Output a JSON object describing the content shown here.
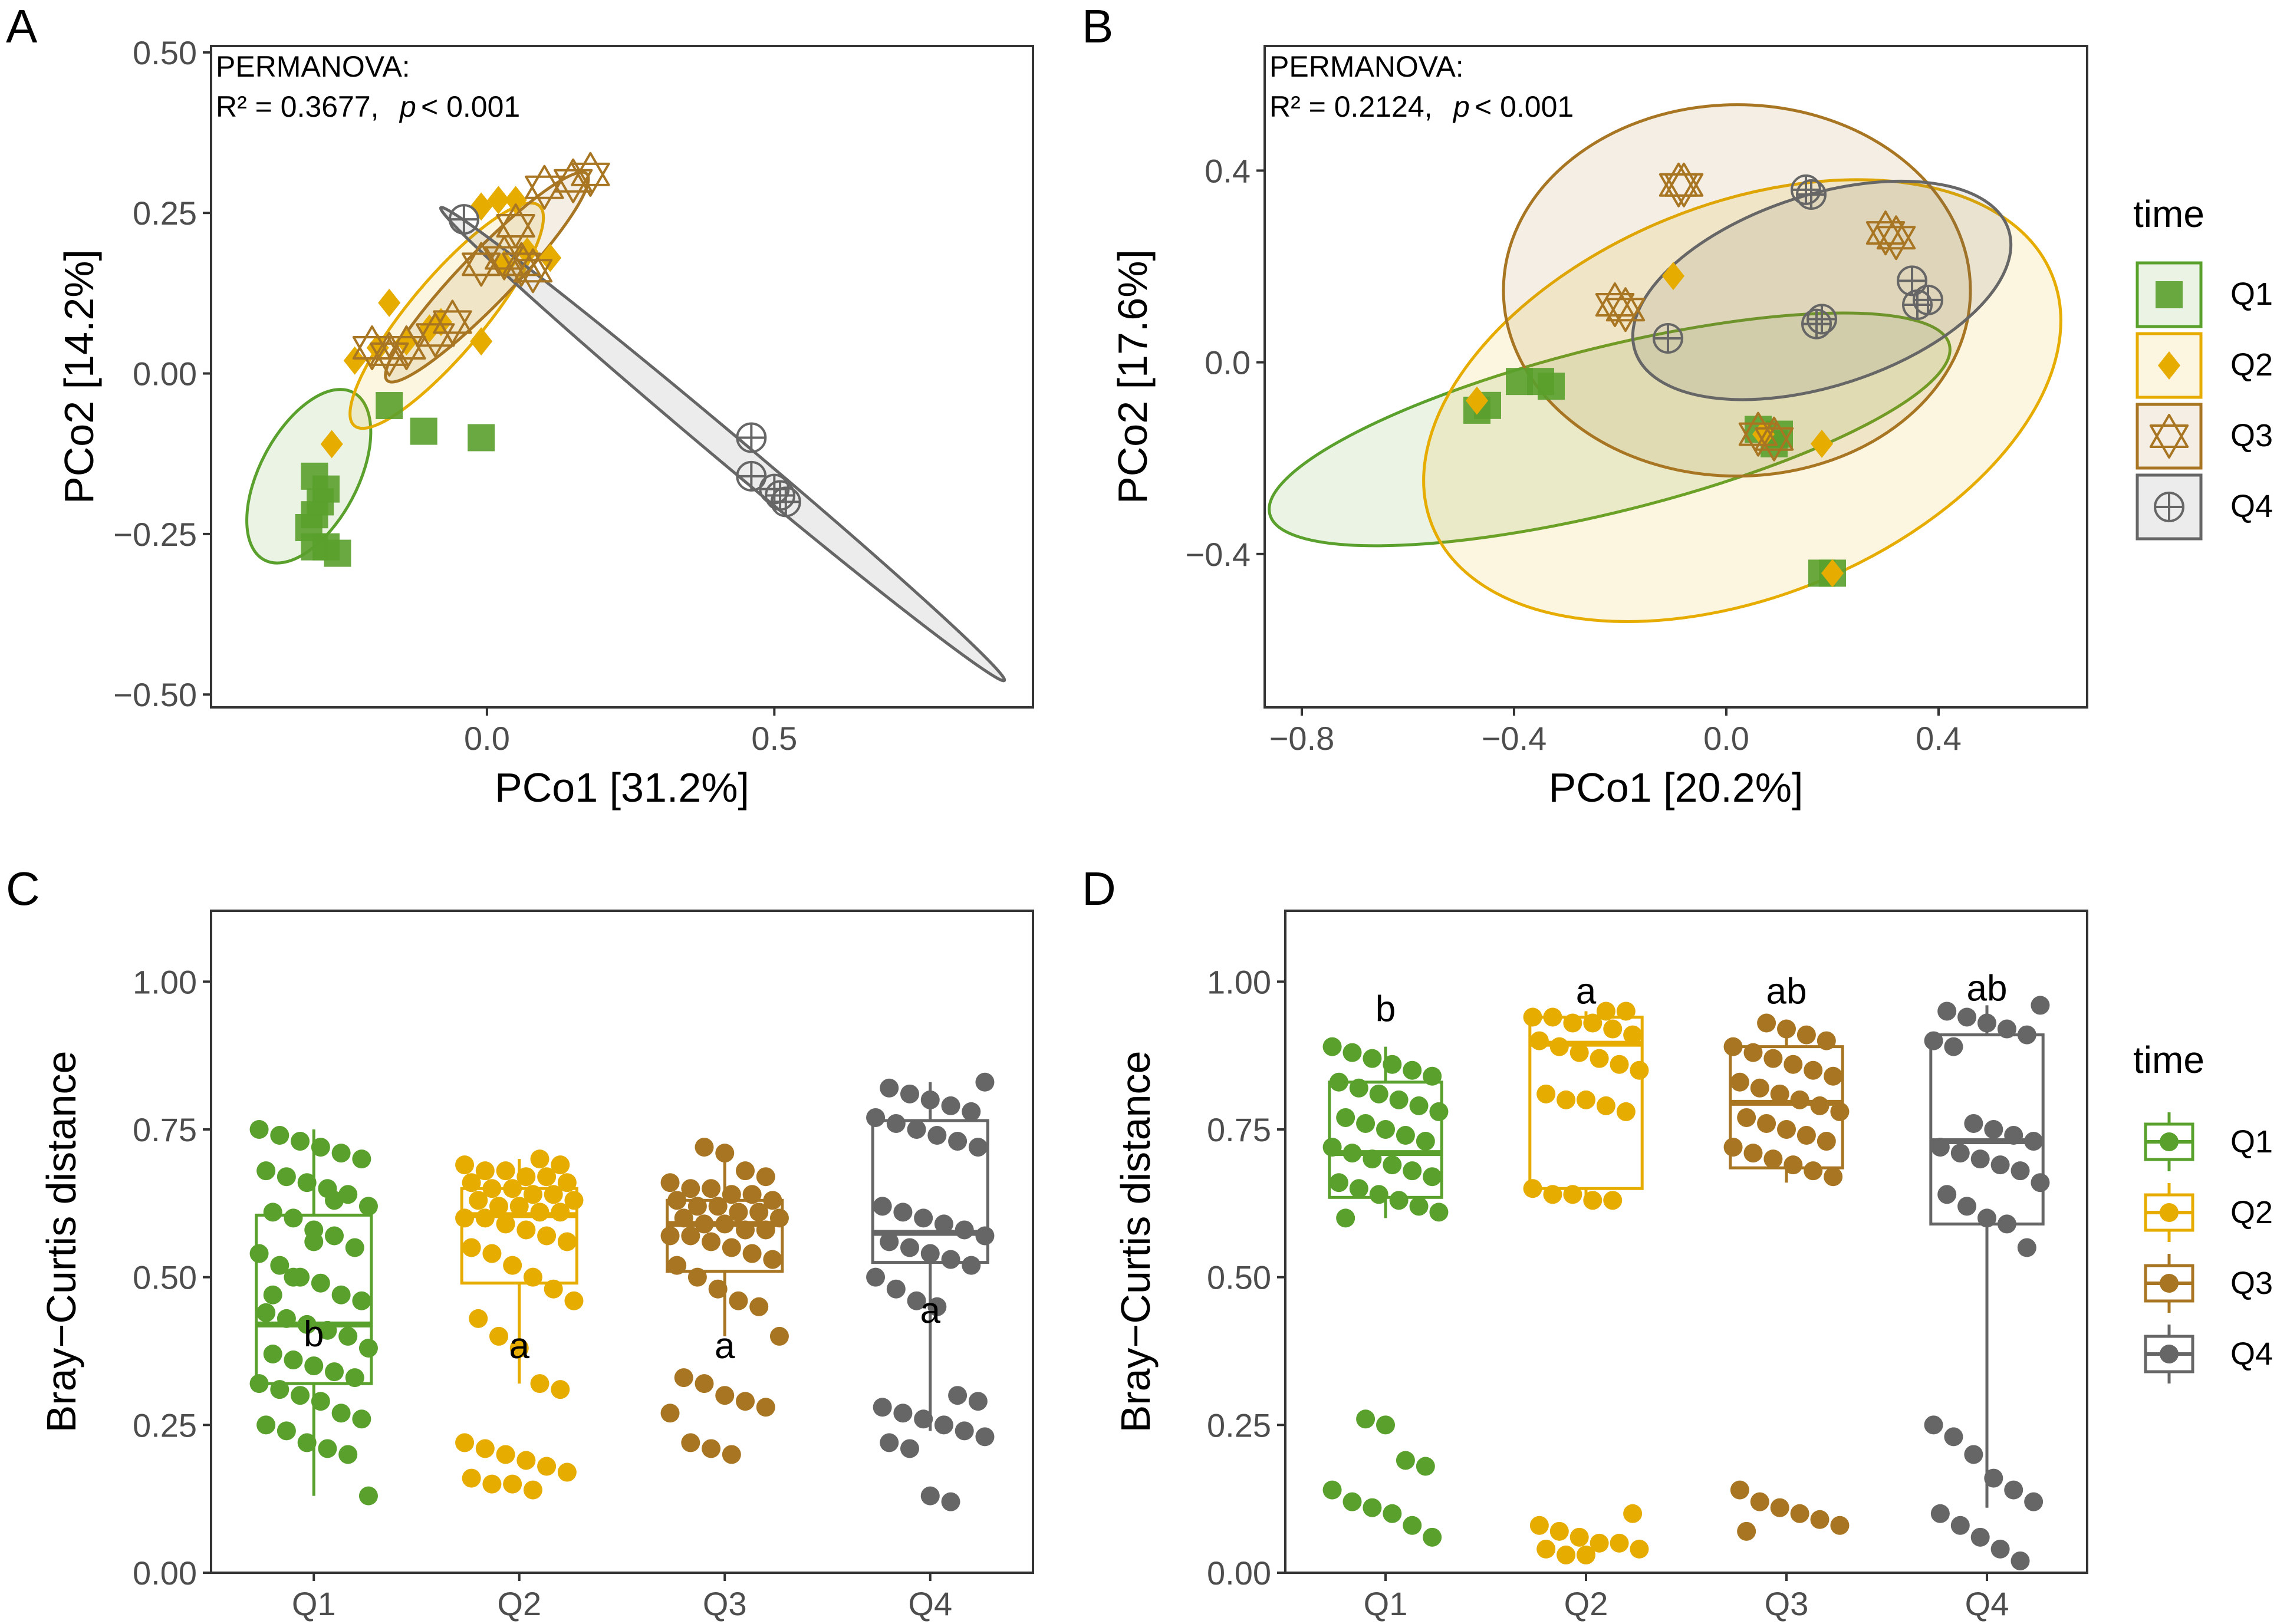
{
  "figure": {
    "colors": {
      "Q1": "#5aa02c",
      "Q2": "#e6ac00",
      "Q3": "#a87622",
      "Q4": "#666666"
    }
  },
  "legend": {
    "top": {
      "title": "time",
      "items": [
        "Q1",
        "Q2",
        "Q3",
        "Q4"
      ]
    },
    "bottom": {
      "title": "time",
      "items": [
        "Q1",
        "Q2",
        "Q3",
        "Q4"
      ]
    }
  },
  "chart_data": [
    {
      "panel": "A",
      "type": "scatter",
      "xlabel": "PCo1 [31.2%]",
      "ylabel": "PCo2 [14.2%]",
      "xlim": [
        -0.48,
        0.95
      ],
      "ylim": [
        -0.52,
        0.51
      ],
      "xticks": [
        0.0,
        0.5
      ],
      "xtick_labels": [
        "0.0",
        "0.5"
      ],
      "yticks": [
        -0.5,
        -0.25,
        0.0,
        0.25,
        0.5
      ],
      "ytick_labels": [
        "−0.50",
        "−0.25",
        "0.00",
        "0.25",
        "0.50"
      ],
      "annotation": {
        "line1": "PERMANOVA:",
        "line2_left": "R² = 0.3677,",
        "p_sym": "p",
        "line2_right": "< 0.001"
      },
      "ellipses": [
        {
          "group": "Q1",
          "cx": -0.31,
          "cy": -0.16,
          "rx": 0.165,
          "ry": 0.085,
          "angle": 62
        },
        {
          "group": "Q2",
          "cx": -0.07,
          "cy": 0.09,
          "rx": 0.25,
          "ry": 0.065,
          "angle": 50
        },
        {
          "group": "Q3",
          "cx": 0.0,
          "cy": 0.15,
          "rx": 0.25,
          "ry": 0.045,
          "angle": 46
        },
        {
          "group": "Q4",
          "cx": 0.41,
          "cy": -0.11,
          "rx": 0.64,
          "ry": 0.025,
          "angle": -40
        }
      ],
      "series": [
        {
          "name": "Q1",
          "marker": "square",
          "points": [
            [
              -0.3,
              -0.16
            ],
            [
              -0.29,
              -0.2
            ],
            [
              -0.31,
              -0.24
            ],
            [
              -0.3,
              -0.27
            ],
            [
              -0.28,
              -0.27
            ],
            [
              -0.26,
              -0.28
            ],
            [
              -0.3,
              -0.22
            ],
            [
              -0.28,
              -0.18
            ],
            [
              -0.17,
              -0.05
            ],
            [
              -0.11,
              -0.09
            ],
            [
              -0.01,
              -0.1
            ]
          ]
        },
        {
          "name": "Q2",
          "marker": "diamond",
          "points": [
            [
              -0.27,
              -0.11
            ],
            [
              -0.23,
              0.02
            ],
            [
              -0.19,
              0.04
            ],
            [
              -0.17,
              0.11
            ],
            [
              -0.14,
              0.05
            ],
            [
              -0.1,
              0.07
            ],
            [
              -0.08,
              0.08
            ],
            [
              -0.01,
              0.05
            ],
            [
              -0.01,
              0.26
            ],
            [
              0.02,
              0.27
            ],
            [
              0.05,
              0.27
            ],
            [
              0.03,
              0.17
            ],
            [
              0.07,
              0.19
            ],
            [
              0.11,
              0.18
            ]
          ]
        },
        {
          "name": "Q3",
          "marker": "star",
          "points": [
            [
              -0.2,
              0.04
            ],
            [
              -0.17,
              0.03
            ],
            [
              -0.14,
              0.04
            ],
            [
              -0.09,
              0.06
            ],
            [
              -0.06,
              0.08
            ],
            [
              -0.01,
              0.17
            ],
            [
              0.03,
              0.18
            ],
            [
              0.06,
              0.17
            ],
            [
              0.08,
              0.16
            ],
            [
              0.05,
              0.23
            ],
            [
              0.1,
              0.29
            ],
            [
              0.15,
              0.3
            ],
            [
              0.18,
              0.31
            ]
          ]
        },
        {
          "name": "Q4",
          "marker": "circle-plus",
          "points": [
            [
              -0.04,
              0.24
            ],
            [
              0.46,
              -0.1
            ],
            [
              0.46,
              -0.16
            ],
            [
              0.5,
              -0.18
            ],
            [
              0.51,
              -0.19
            ],
            [
              0.52,
              -0.2
            ]
          ]
        }
      ]
    },
    {
      "panel": "B",
      "type": "scatter",
      "xlabel": "PCo1 [20.2%]",
      "ylabel": "PCo2 [17.6%]",
      "xlim": [
        -0.87,
        0.68
      ],
      "ylim": [
        -0.72,
        0.66
      ],
      "xticks": [
        -0.8,
        -0.4,
        0.0,
        0.4
      ],
      "xtick_labels": [
        "−0.8",
        "−0.4",
        "0.0",
        "0.4"
      ],
      "yticks": [
        -0.4,
        0.0,
        0.4
      ],
      "ytick_labels": [
        "−0.4",
        "0.0",
        "0.4"
      ],
      "annotation": {
        "line1": "PERMANOVA:",
        "line2_left": "R² = 0.2124,",
        "p_sym": "p",
        "line2_right": "< 0.001"
      },
      "ellipses": [
        {
          "group": "Q1",
          "cx": -0.22,
          "cy": -0.14,
          "rx": 0.66,
          "ry": 0.155,
          "angle": 14
        },
        {
          "group": "Q2",
          "cx": 0.03,
          "cy": -0.08,
          "rx": 0.63,
          "ry": 0.37,
          "angle": 22
        },
        {
          "group": "Q3",
          "cx": 0.02,
          "cy": 0.15,
          "rx": 0.44,
          "ry": 0.35,
          "angle": 0
        },
        {
          "group": "Q4",
          "cx": 0.18,
          "cy": 0.15,
          "rx": 0.37,
          "ry": 0.18,
          "angle": 18
        }
      ],
      "series": [
        {
          "name": "Q1",
          "marker": "square",
          "points": [
            [
              -0.47,
              -0.1
            ],
            [
              -0.45,
              -0.09
            ],
            [
              -0.39,
              -0.04
            ],
            [
              -0.35,
              -0.04
            ],
            [
              -0.33,
              -0.05
            ],
            [
              0.06,
              -0.14
            ],
            [
              0.09,
              -0.17
            ],
            [
              0.1,
              -0.15
            ],
            [
              0.18,
              -0.44
            ],
            [
              0.2,
              -0.44
            ]
          ]
        },
        {
          "name": "Q2",
          "marker": "diamond",
          "points": [
            [
              -0.47,
              -0.08
            ],
            [
              -0.1,
              0.18
            ],
            [
              0.07,
              -0.15
            ],
            [
              0.18,
              -0.17
            ],
            [
              0.2,
              -0.44
            ]
          ]
        },
        {
          "name": "Q3",
          "marker": "star",
          "points": [
            [
              -0.21,
              0.12
            ],
            [
              -0.19,
              0.11
            ],
            [
              -0.09,
              0.37
            ],
            [
              -0.08,
              0.37
            ],
            [
              0.06,
              -0.15
            ],
            [
              0.09,
              -0.16
            ],
            [
              0.3,
              0.27
            ],
            [
              0.32,
              0.26
            ]
          ]
        },
        {
          "name": "Q4",
          "marker": "circle-plus",
          "points": [
            [
              -0.11,
              0.05
            ],
            [
              0.15,
              0.36
            ],
            [
              0.16,
              0.35
            ],
            [
              0.17,
              0.08
            ],
            [
              0.18,
              0.09
            ],
            [
              0.35,
              0.17
            ],
            [
              0.36,
              0.12
            ],
            [
              0.38,
              0.13
            ]
          ]
        }
      ]
    },
    {
      "panel": "C",
      "type": "box",
      "ylabel": "Bray−Curtis distance",
      "ylim": [
        0.0,
        1.12
      ],
      "yticks": [
        0.0,
        0.25,
        0.5,
        0.75,
        1.0
      ],
      "ytick_labels": [
        "0.00",
        "0.25",
        "0.50",
        "0.75",
        "1.00"
      ],
      "categories": [
        "Q1",
        "Q2",
        "Q3",
        "Q4"
      ],
      "letters": [
        "b",
        "a",
        "a",
        "a"
      ],
      "letter_y": [
        0.405,
        0.385,
        0.385,
        0.445
      ],
      "boxes": [
        {
          "q1": 0.32,
          "median": 0.42,
          "q3": 0.605,
          "lo": 0.13,
          "hi": 0.75
        },
        {
          "q1": 0.49,
          "median": 0.605,
          "q3": 0.65,
          "lo": 0.32,
          "hi": 0.7
        },
        {
          "q1": 0.51,
          "median": 0.59,
          "q3": 0.63,
          "lo": 0.4,
          "hi": 0.72
        },
        {
          "q1": 0.525,
          "median": 0.575,
          "q3": 0.765,
          "lo": 0.24,
          "hi": 0.83
        }
      ],
      "points": [
        [
          0.75,
          0.74,
          0.73,
          0.72,
          0.71,
          0.7,
          0.68,
          0.67,
          0.66,
          0.65,
          0.64,
          0.62,
          0.61,
          0.6,
          0.58,
          0.57,
          0.55,
          0.54,
          0.52,
          0.5,
          0.49,
          0.47,
          0.46,
          0.44,
          0.43,
          0.42,
          0.41,
          0.4,
          0.38,
          0.37,
          0.36,
          0.35,
          0.34,
          0.33,
          0.32,
          0.31,
          0.3,
          0.29,
          0.27,
          0.26,
          0.25,
          0.24,
          0.22,
          0.21,
          0.2,
          0.13,
          0.47,
          0.5,
          0.56,
          0.63
        ],
        [
          0.7,
          0.69,
          0.69,
          0.68,
          0.68,
          0.67,
          0.67,
          0.66,
          0.66,
          0.65,
          0.65,
          0.64,
          0.64,
          0.63,
          0.63,
          0.62,
          0.62,
          0.61,
          0.61,
          0.6,
          0.6,
          0.59,
          0.58,
          0.57,
          0.56,
          0.55,
          0.54,
          0.52,
          0.5,
          0.48,
          0.46,
          0.43,
          0.4,
          0.38,
          0.32,
          0.31,
          0.22,
          0.21,
          0.2,
          0.19,
          0.18,
          0.17,
          0.16,
          0.15,
          0.15,
          0.14
        ],
        [
          0.72,
          0.71,
          0.68,
          0.67,
          0.66,
          0.65,
          0.65,
          0.64,
          0.64,
          0.63,
          0.63,
          0.62,
          0.62,
          0.61,
          0.61,
          0.6,
          0.6,
          0.59,
          0.59,
          0.58,
          0.58,
          0.57,
          0.57,
          0.56,
          0.55,
          0.54,
          0.53,
          0.52,
          0.5,
          0.48,
          0.46,
          0.45,
          0.4,
          0.33,
          0.32,
          0.3,
          0.29,
          0.28,
          0.27,
          0.22,
          0.21,
          0.2
        ],
        [
          0.83,
          0.82,
          0.81,
          0.8,
          0.79,
          0.78,
          0.77,
          0.76,
          0.75,
          0.74,
          0.73,
          0.72,
          0.62,
          0.61,
          0.6,
          0.59,
          0.58,
          0.57,
          0.56,
          0.55,
          0.54,
          0.53,
          0.52,
          0.5,
          0.48,
          0.46,
          0.45,
          0.3,
          0.29,
          0.28,
          0.27,
          0.26,
          0.25,
          0.24,
          0.23,
          0.22,
          0.21,
          0.13,
          0.12
        ]
      ]
    },
    {
      "panel": "D",
      "type": "box",
      "ylabel": "Bray−Curtis distance",
      "ylim": [
        0.0,
        1.12
      ],
      "yticks": [
        0.0,
        0.25,
        0.5,
        0.75,
        1.0
      ],
      "ytick_labels": [
        "0.00",
        "0.25",
        "0.50",
        "0.75",
        "1.00"
      ],
      "categories": [
        "Q1",
        "Q2",
        "Q3",
        "Q4"
      ],
      "letters": [
        "b",
        "a",
        "ab",
        "ab"
      ],
      "letter_y": [
        0.955,
        0.985,
        0.985,
        0.99
      ],
      "boxes": [
        {
          "q1": 0.635,
          "median": 0.71,
          "q3": 0.83,
          "lo": 0.6,
          "hi": 0.89
        },
        {
          "q1": 0.65,
          "median": 0.895,
          "q3": 0.94,
          "lo": 0.63,
          "hi": 0.95
        },
        {
          "q1": 0.685,
          "median": 0.795,
          "q3": 0.89,
          "lo": 0.66,
          "hi": 0.93
        },
        {
          "q1": 0.59,
          "median": 0.73,
          "q3": 0.91,
          "lo": 0.11,
          "hi": 0.96
        }
      ],
      "points": [
        [
          0.89,
          0.88,
          0.87,
          0.86,
          0.85,
          0.84,
          0.83,
          0.82,
          0.81,
          0.8,
          0.79,
          0.78,
          0.77,
          0.76,
          0.75,
          0.74,
          0.73,
          0.72,
          0.71,
          0.7,
          0.69,
          0.68,
          0.67,
          0.66,
          0.65,
          0.64,
          0.63,
          0.62,
          0.61,
          0.6,
          0.26,
          0.25,
          0.19,
          0.18,
          0.14,
          0.12,
          0.11,
          0.1,
          0.08,
          0.06
        ],
        [
          0.95,
          0.95,
          0.94,
          0.94,
          0.93,
          0.93,
          0.92,
          0.91,
          0.9,
          0.89,
          0.88,
          0.87,
          0.86,
          0.85,
          0.81,
          0.8,
          0.8,
          0.79,
          0.78,
          0.65,
          0.64,
          0.64,
          0.63,
          0.63,
          0.1,
          0.08,
          0.07,
          0.06,
          0.05,
          0.05,
          0.04,
          0.04,
          0.03,
          0.03
        ],
        [
          0.93,
          0.92,
          0.91,
          0.9,
          0.89,
          0.88,
          0.87,
          0.86,
          0.85,
          0.84,
          0.83,
          0.82,
          0.81,
          0.8,
          0.79,
          0.78,
          0.77,
          0.76,
          0.75,
          0.74,
          0.73,
          0.72,
          0.71,
          0.7,
          0.69,
          0.68,
          0.67,
          0.14,
          0.12,
          0.11,
          0.1,
          0.09,
          0.08,
          0.07
        ],
        [
          0.96,
          0.95,
          0.94,
          0.93,
          0.92,
          0.91,
          0.9,
          0.89,
          0.76,
          0.75,
          0.74,
          0.73,
          0.72,
          0.71,
          0.7,
          0.69,
          0.68,
          0.66,
          0.64,
          0.62,
          0.6,
          0.59,
          0.55,
          0.25,
          0.23,
          0.2,
          0.16,
          0.14,
          0.12,
          0.1,
          0.08,
          0.06,
          0.04,
          0.02
        ]
      ]
    }
  ]
}
